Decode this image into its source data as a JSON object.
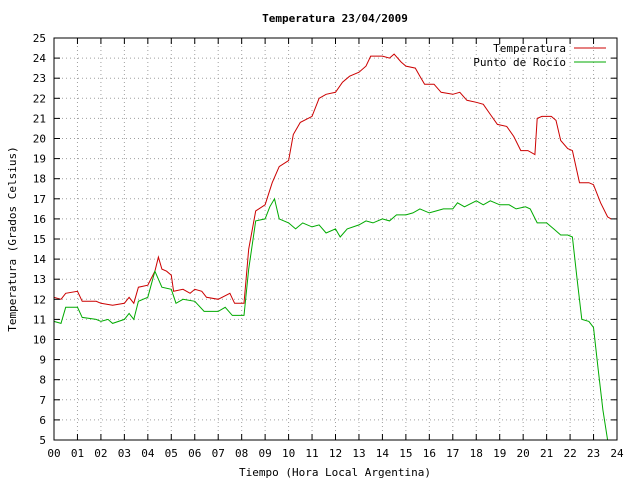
{
  "chart_data": {
    "type": "line",
    "title": "Temperatura 23/04/2009",
    "xlabel": "Tiempo (Hora Local Argentina)",
    "ylabel": "Temperatura (Grados Celsius)",
    "xlim": [
      0,
      24
    ],
    "ylim": [
      5,
      25
    ],
    "x_ticks": [
      "00",
      "01",
      "02",
      "03",
      "04",
      "05",
      "06",
      "07",
      "08",
      "09",
      "10",
      "11",
      "12",
      "13",
      "14",
      "15",
      "16",
      "17",
      "18",
      "19",
      "20",
      "21",
      "22",
      "23",
      "24"
    ],
    "y_ticks": [
      "5",
      "6",
      "7",
      "8",
      "9",
      "10",
      "11",
      "12",
      "13",
      "14",
      "15",
      "16",
      "17",
      "18",
      "19",
      "20",
      "21",
      "22",
      "23",
      "24",
      "25"
    ],
    "grid": true,
    "legend_position": "top-right",
    "series": [
      {
        "name": "Temperatura",
        "color": "#cc0000",
        "points": [
          [
            0,
            12.1
          ],
          [
            0.3,
            12.0
          ],
          [
            0.5,
            12.3
          ],
          [
            1,
            12.4
          ],
          [
            1.2,
            11.9
          ],
          [
            1.8,
            11.9
          ],
          [
            2,
            11.8
          ],
          [
            2.5,
            11.7
          ],
          [
            3,
            11.8
          ],
          [
            3.2,
            12.1
          ],
          [
            3.4,
            11.8
          ],
          [
            3.6,
            12.6
          ],
          [
            4,
            12.7
          ],
          [
            4.3,
            13.4
          ],
          [
            4.45,
            14.1
          ],
          [
            4.6,
            13.5
          ],
          [
            4.8,
            13.4
          ],
          [
            5,
            13.2
          ],
          [
            5.1,
            12.4
          ],
          [
            5.5,
            12.5
          ],
          [
            5.8,
            12.3
          ],
          [
            6,
            12.5
          ],
          [
            6.3,
            12.4
          ],
          [
            6.5,
            12.1
          ],
          [
            7,
            12.0
          ],
          [
            7.5,
            12.3
          ],
          [
            7.7,
            11.8
          ],
          [
            8.1,
            11.8
          ],
          [
            8.3,
            14.5
          ],
          [
            8.6,
            16.4
          ],
          [
            9,
            16.7
          ],
          [
            9.3,
            17.8
          ],
          [
            9.6,
            18.6
          ],
          [
            10,
            18.9
          ],
          [
            10.2,
            20.2
          ],
          [
            10.5,
            20.8
          ],
          [
            11,
            21.1
          ],
          [
            11.3,
            22.0
          ],
          [
            11.6,
            22.2
          ],
          [
            12,
            22.3
          ],
          [
            12.3,
            22.8
          ],
          [
            12.6,
            23.1
          ],
          [
            13,
            23.3
          ],
          [
            13.3,
            23.6
          ],
          [
            13.5,
            24.1
          ],
          [
            14,
            24.1
          ],
          [
            14.3,
            24.0
          ],
          [
            14.5,
            24.2
          ],
          [
            14.8,
            23.8
          ],
          [
            15,
            23.6
          ],
          [
            15.4,
            23.5
          ],
          [
            15.6,
            23.1
          ],
          [
            15.8,
            22.7
          ],
          [
            16.2,
            22.7
          ],
          [
            16.5,
            22.3
          ],
          [
            17,
            22.2
          ],
          [
            17.3,
            22.3
          ],
          [
            17.6,
            21.9
          ],
          [
            18,
            21.8
          ],
          [
            18.3,
            21.7
          ],
          [
            18.6,
            21.2
          ],
          [
            18.9,
            20.7
          ],
          [
            19.3,
            20.6
          ],
          [
            19.6,
            20.1
          ],
          [
            19.9,
            19.4
          ],
          [
            20.2,
            19.4
          ],
          [
            20.5,
            19.2
          ],
          [
            20.6,
            21.0
          ],
          [
            20.8,
            21.1
          ],
          [
            21.2,
            21.1
          ],
          [
            21.4,
            20.9
          ],
          [
            21.6,
            19.9
          ],
          [
            21.9,
            19.5
          ],
          [
            22.1,
            19.4
          ],
          [
            22.4,
            17.8
          ],
          [
            22.8,
            17.8
          ],
          [
            23.0,
            17.7
          ],
          [
            23.3,
            16.8
          ],
          [
            23.6,
            16.1
          ],
          [
            23.75,
            16.0
          ]
        ]
      },
      {
        "name": "Punto de Rocío",
        "color": "#00aa00",
        "points": [
          [
            0,
            10.9
          ],
          [
            0.3,
            10.8
          ],
          [
            0.5,
            11.6
          ],
          [
            1,
            11.6
          ],
          [
            1.2,
            11.1
          ],
          [
            1.8,
            11.0
          ],
          [
            2,
            10.9
          ],
          [
            2.3,
            11.0
          ],
          [
            2.5,
            10.8
          ],
          [
            3,
            11.0
          ],
          [
            3.2,
            11.3
          ],
          [
            3.4,
            11.0
          ],
          [
            3.6,
            11.9
          ],
          [
            4,
            12.1
          ],
          [
            4.3,
            13.4
          ],
          [
            4.6,
            12.6
          ],
          [
            5,
            12.5
          ],
          [
            5.2,
            11.8
          ],
          [
            5.5,
            12.0
          ],
          [
            6,
            11.9
          ],
          [
            6.4,
            11.4
          ],
          [
            7,
            11.4
          ],
          [
            7.3,
            11.6
          ],
          [
            7.6,
            11.2
          ],
          [
            8.1,
            11.2
          ],
          [
            8.3,
            13.5
          ],
          [
            8.6,
            15.9
          ],
          [
            9,
            16.0
          ],
          [
            9.2,
            16.6
          ],
          [
            9.4,
            17.0
          ],
          [
            9.6,
            16.0
          ],
          [
            10,
            15.8
          ],
          [
            10.3,
            15.5
          ],
          [
            10.6,
            15.8
          ],
          [
            11,
            15.6
          ],
          [
            11.3,
            15.7
          ],
          [
            11.6,
            15.3
          ],
          [
            12,
            15.5
          ],
          [
            12.2,
            15.1
          ],
          [
            12.5,
            15.5
          ],
          [
            13,
            15.7
          ],
          [
            13.3,
            15.9
          ],
          [
            13.6,
            15.8
          ],
          [
            14,
            16.0
          ],
          [
            14.3,
            15.9
          ],
          [
            14.6,
            16.2
          ],
          [
            15,
            16.2
          ],
          [
            15.3,
            16.3
          ],
          [
            15.6,
            16.5
          ],
          [
            16,
            16.3
          ],
          [
            16.3,
            16.4
          ],
          [
            16.6,
            16.5
          ],
          [
            17,
            16.5
          ],
          [
            17.2,
            16.8
          ],
          [
            17.5,
            16.6
          ],
          [
            18,
            16.9
          ],
          [
            18.3,
            16.7
          ],
          [
            18.6,
            16.9
          ],
          [
            19,
            16.7
          ],
          [
            19.4,
            16.7
          ],
          [
            19.7,
            16.5
          ],
          [
            20.1,
            16.6
          ],
          [
            20.3,
            16.5
          ],
          [
            20.6,
            15.8
          ],
          [
            21,
            15.8
          ],
          [
            21.3,
            15.5
          ],
          [
            21.6,
            15.2
          ],
          [
            21.9,
            15.2
          ],
          [
            22.1,
            15.1
          ],
          [
            22.3,
            13.0
          ],
          [
            22.5,
            11.0
          ],
          [
            22.8,
            10.9
          ],
          [
            23.0,
            10.6
          ],
          [
            23.2,
            8.5
          ],
          [
            23.4,
            6.5
          ],
          [
            23.6,
            5.0
          ]
        ]
      }
    ]
  }
}
